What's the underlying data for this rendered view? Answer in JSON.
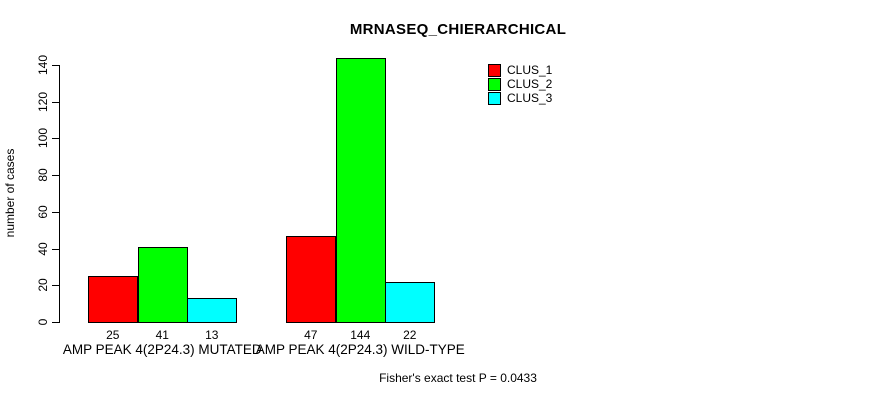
{
  "chart_data": {
    "type": "bar",
    "title": "MRNASEQ_CHIERARCHICAL",
    "ylabel": "number of cases",
    "xlabel": "",
    "annotation": "Fisher's exact test P = 0.0433",
    "groups": [
      "AMP PEAK 4(2P24.3) MUTATED",
      "AMP PEAK 4(2P24.3) WILD-TYPE"
    ],
    "series": [
      {
        "name": "CLUS_1",
        "color": "#ff0000",
        "values": [
          25,
          47
        ]
      },
      {
        "name": "CLUS_2",
        "color": "#00ff00",
        "values": [
          41,
          144
        ]
      },
      {
        "name": "CLUS_3",
        "color": "#00ffff",
        "values": [
          13,
          22
        ]
      }
    ],
    "bar_value_labels": [
      [
        "25",
        "41",
        "13"
      ],
      [
        "47",
        "144",
        "22"
      ]
    ],
    "yticks": [
      0,
      20,
      40,
      60,
      80,
      100,
      120,
      140
    ],
    "ylim": [
      0,
      140
    ],
    "grid": false,
    "legend_position": "top-right-inside",
    "bar_border_color": "#000000",
    "text_color": "#000000",
    "background_color": "#ffffff"
  }
}
